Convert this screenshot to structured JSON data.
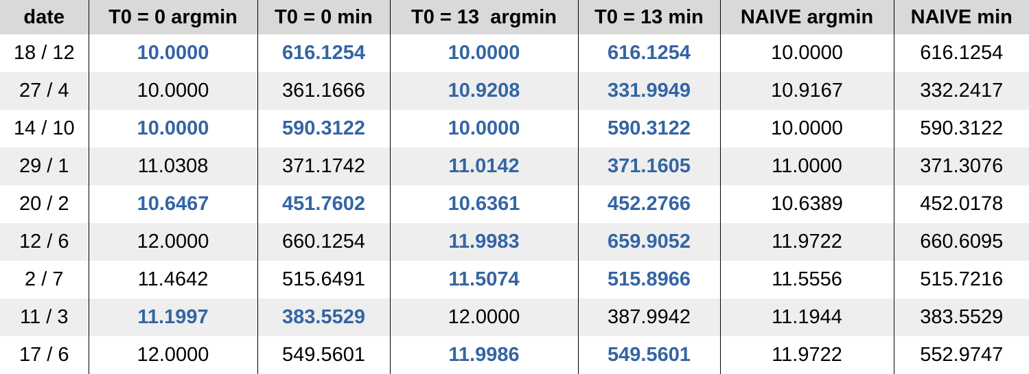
{
  "table": {
    "headers": [
      "date",
      "T0 = 0 argmin",
      "T0 = 0 min",
      "T0 = 13  argmin",
      "T0 = 13 min",
      "NAIVE argmin",
      "NAIVE min"
    ],
    "rows": [
      {
        "cells": [
          "18 / 12",
          "10.0000",
          "616.1254",
          "10.0000",
          "616.1254",
          "10.0000",
          "616.1254"
        ],
        "highlighted": [
          false,
          true,
          true,
          true,
          true,
          false,
          false
        ]
      },
      {
        "cells": [
          "27 / 4",
          "10.0000",
          "361.1666",
          "10.9208",
          "331.9949",
          "10.9167",
          "332.2417"
        ],
        "highlighted": [
          false,
          false,
          false,
          true,
          true,
          false,
          false
        ]
      },
      {
        "cells": [
          "14 / 10",
          "10.0000",
          "590.3122",
          "10.0000",
          "590.3122",
          "10.0000",
          "590.3122"
        ],
        "highlighted": [
          false,
          true,
          true,
          true,
          true,
          false,
          false
        ]
      },
      {
        "cells": [
          "29 / 1",
          "11.0308",
          "371.1742",
          "11.0142",
          "371.1605",
          "11.0000",
          "371.3076"
        ],
        "highlighted": [
          false,
          false,
          false,
          true,
          true,
          false,
          false
        ]
      },
      {
        "cells": [
          "20 / 2",
          "10.6467",
          "451.7602",
          "10.6361",
          "452.2766",
          "10.6389",
          "452.0178"
        ],
        "highlighted": [
          false,
          true,
          true,
          true,
          true,
          false,
          false
        ]
      },
      {
        "cells": [
          "12 / 6",
          "12.0000",
          "660.1254",
          "11.9983",
          "659.9052",
          "11.9722",
          "660.6095"
        ],
        "highlighted": [
          false,
          false,
          false,
          true,
          true,
          false,
          false
        ]
      },
      {
        "cells": [
          "2 / 7",
          "11.4642",
          "515.6491",
          "11.5074",
          "515.8966",
          "11.5556",
          "515.7216"
        ],
        "highlighted": [
          false,
          false,
          false,
          true,
          true,
          false,
          false
        ]
      },
      {
        "cells": [
          "11 / 3",
          "11.1997",
          "383.5529",
          "12.0000",
          "387.9942",
          "11.1944",
          "383.5529"
        ],
        "highlighted": [
          false,
          true,
          true,
          false,
          false,
          false,
          false
        ]
      },
      {
        "cells": [
          "17 / 6",
          "12.0000",
          "549.5601",
          "11.9986",
          "549.5601",
          "11.9722",
          "552.9747"
        ],
        "highlighted": [
          false,
          false,
          false,
          true,
          true,
          false,
          false
        ]
      }
    ]
  },
  "colors": {
    "highlight_text": "#3465a4",
    "header_background": "#d9d9d9",
    "stripe_background": "#eeeeee",
    "grid_line": "#000000"
  }
}
